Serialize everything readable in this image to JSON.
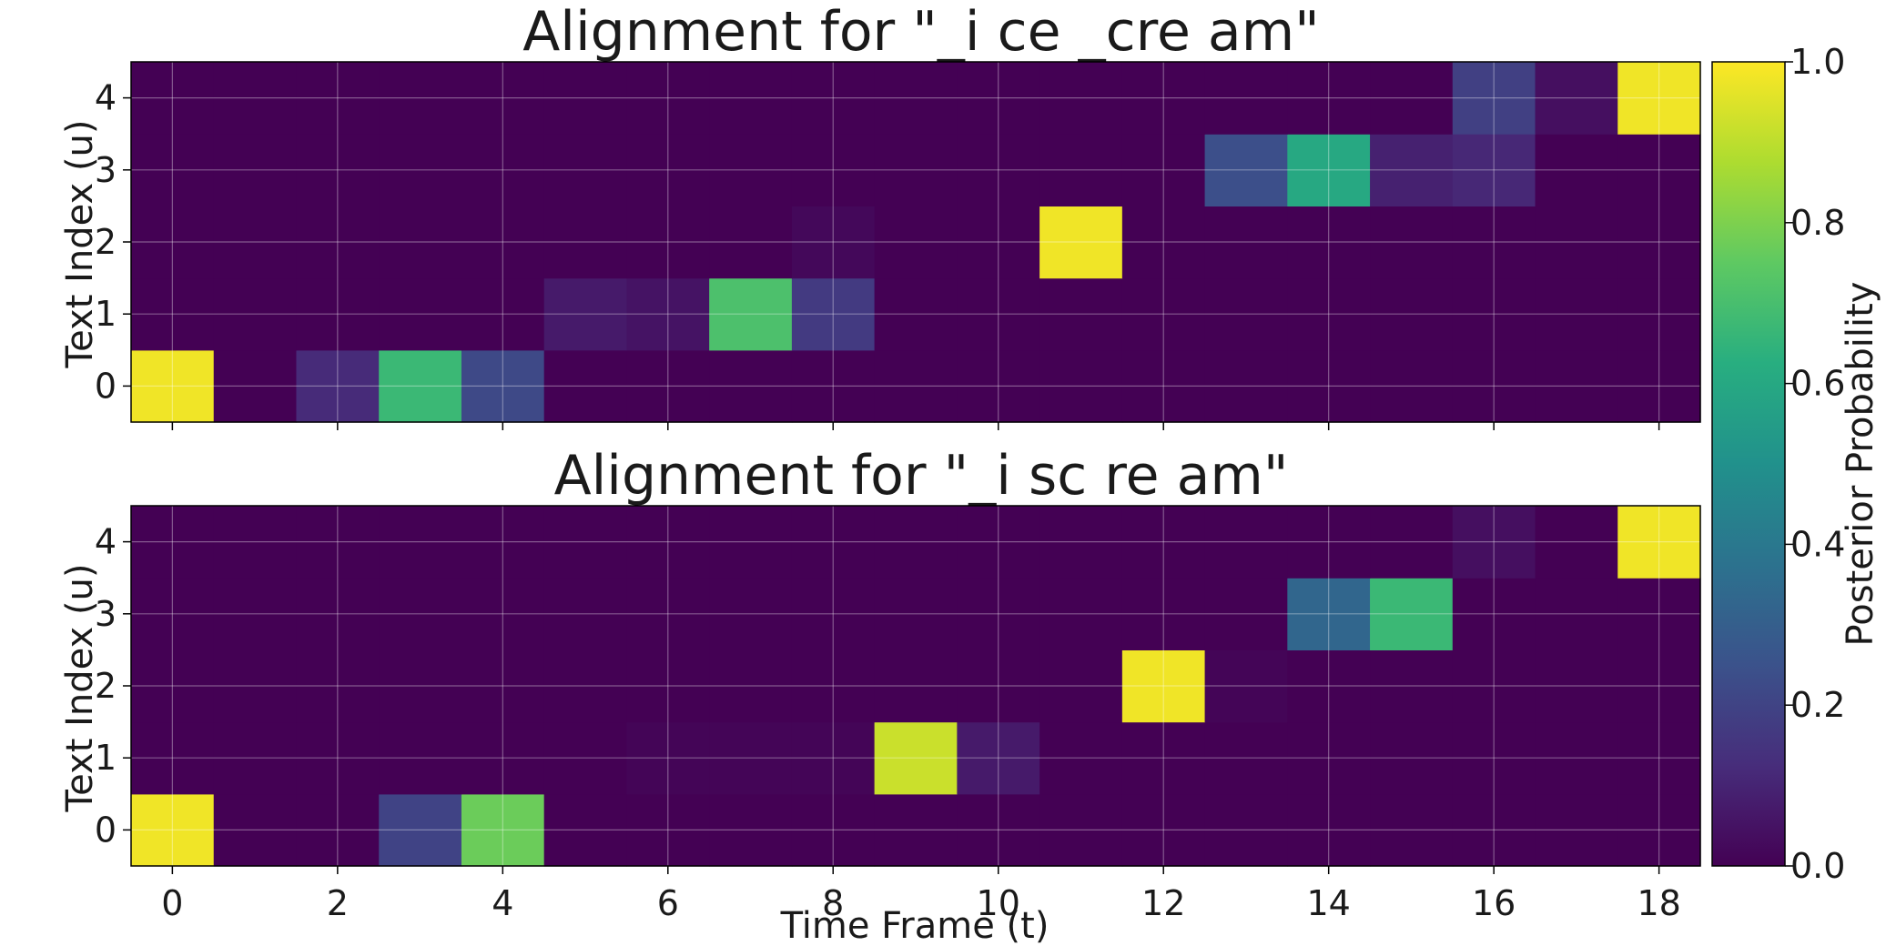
{
  "chart_data": {
    "type": "heatmap",
    "colormap": "viridis",
    "grid": true,
    "xlabel": "Time Frame (t)",
    "x_ticks": [
      0,
      2,
      4,
      6,
      8,
      10,
      12,
      14,
      16,
      18
    ],
    "xlim": [
      -0.5,
      18.5
    ],
    "colorbar": {
      "label": "Posterior Probability",
      "range": [
        0.0,
        1.0
      ],
      "ticks": [
        "0.0",
        "0.2",
        "0.4",
        "0.6",
        "0.8",
        "1.0"
      ]
    },
    "panels": [
      {
        "title": "Alignment for \"_i ce _cre am\"",
        "ylabel": "Text Index (u)",
        "y_ticks": [
          0,
          1,
          2,
          3,
          4
        ],
        "matrix": [
          [
            0.98,
            0.0,
            0.12,
            0.67,
            0.22,
            0.0,
            0.0,
            0.0,
            0.0,
            0.0,
            0.0,
            0.0,
            0.0,
            0.0,
            0.0,
            0.0,
            0.0,
            0.0,
            0.0
          ],
          [
            0.0,
            0.0,
            0.0,
            0.0,
            0.0,
            0.07,
            0.05,
            0.71,
            0.17,
            0.0,
            0.0,
            0.0,
            0.0,
            0.0,
            0.0,
            0.0,
            0.0,
            0.0,
            0.0
          ],
          [
            0.0,
            0.0,
            0.0,
            0.0,
            0.0,
            0.0,
            0.0,
            0.0,
            0.02,
            0.0,
            0.0,
            0.98,
            0.0,
            0.0,
            0.0,
            0.0,
            0.0,
            0.0,
            0.0
          ],
          [
            0.0,
            0.0,
            0.0,
            0.0,
            0.0,
            0.0,
            0.0,
            0.0,
            0.0,
            0.0,
            0.0,
            0.0,
            0.0,
            0.24,
            0.6,
            0.09,
            0.11,
            0.0,
            0.0
          ],
          [
            0.0,
            0.0,
            0.0,
            0.0,
            0.0,
            0.0,
            0.0,
            0.0,
            0.0,
            0.0,
            0.0,
            0.0,
            0.0,
            0.0,
            0.0,
            0.0,
            0.19,
            0.04,
            0.98
          ]
        ]
      },
      {
        "title": "Alignment for \"_i sc re am\"",
        "ylabel": "Text Index (u)",
        "y_ticks": [
          0,
          1,
          2,
          3,
          4
        ],
        "matrix": [
          [
            0.98,
            0.0,
            0.0,
            0.2,
            0.77,
            0.0,
            0.0,
            0.0,
            0.0,
            0.0,
            0.0,
            0.0,
            0.0,
            0.0,
            0.0,
            0.0,
            0.0,
            0.0,
            0.0
          ],
          [
            0.0,
            0.0,
            0.0,
            0.0,
            0.0,
            0.0,
            0.01,
            0.01,
            0.01,
            0.92,
            0.07,
            0.0,
            0.0,
            0.0,
            0.0,
            0.0,
            0.0,
            0.0,
            0.0
          ],
          [
            0.0,
            0.0,
            0.0,
            0.0,
            0.0,
            0.0,
            0.0,
            0.0,
            0.0,
            0.0,
            0.0,
            0.0,
            0.98,
            0.01,
            0.0,
            0.0,
            0.0,
            0.0,
            0.0
          ],
          [
            0.0,
            0.0,
            0.0,
            0.0,
            0.0,
            0.0,
            0.0,
            0.0,
            0.0,
            0.0,
            0.0,
            0.0,
            0.0,
            0.0,
            0.33,
            0.67,
            0.0,
            0.0,
            0.0
          ],
          [
            0.0,
            0.0,
            0.0,
            0.0,
            0.0,
            0.0,
            0.0,
            0.0,
            0.0,
            0.0,
            0.0,
            0.0,
            0.0,
            0.0,
            0.0,
            0.0,
            0.04,
            0.0,
            0.98
          ]
        ]
      }
    ]
  }
}
